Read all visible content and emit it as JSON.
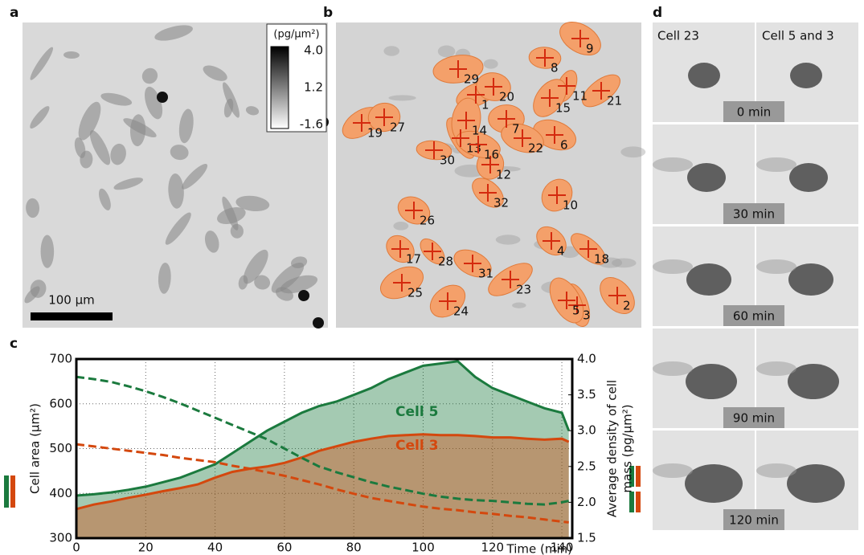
{
  "panels": {
    "a": {
      "label": "a",
      "scale_bar": "100 µm",
      "colorbar": {
        "title": "(pg/µm²)",
        "lim": [
          -1.6,
          4.0
        ],
        "ticks": [
          {
            "value": 4,
            "label": "4.0"
          },
          1.2,
          -1.6
        ]
      }
    },
    "b": {
      "label": "b",
      "cells": [
        "1",
        "2",
        "3",
        "4",
        "5",
        "6",
        "7",
        "8",
        "9",
        "10",
        "11",
        "12",
        "13",
        "14",
        "15",
        "16",
        "17",
        "18",
        "19",
        "20",
        "21",
        "22",
        "23",
        "24",
        "25",
        "26",
        "27",
        "28",
        "29",
        "30",
        "31",
        "32"
      ]
    },
    "c": {
      "label": "c"
    },
    "d": {
      "label": "d",
      "columns": [
        "Cell 23",
        "Cell 5 and 3"
      ],
      "times": [
        "0 min",
        "30 min",
        "60 min",
        "90 min",
        "120 min"
      ]
    }
  },
  "chart_data": {
    "type": "line",
    "x_label": "Time (min)",
    "y_label": "Cell area (µm²)",
    "y2_label": [
      "Average density of cell",
      "mass (pg/µm²)"
    ],
    "x": [
      0,
      5,
      10,
      15,
      20,
      25,
      30,
      35,
      40,
      45,
      50,
      55,
      60,
      65,
      70,
      75,
      80,
      85,
      90,
      95,
      100,
      105,
      110,
      115,
      120,
      125,
      130,
      135,
      140,
      142
    ],
    "xlim": [
      0,
      143
    ],
    "xticks": [
      0,
      20,
      40,
      60,
      80,
      100,
      120,
      140
    ],
    "ylim": [
      300,
      700
    ],
    "yticks": [
      300,
      400,
      500,
      600,
      700
    ],
    "y2lim": [
      1.5,
      4.0
    ],
    "y2ticks": [
      1.5,
      {
        "value": 2,
        "label": "2.0"
      },
      2.5,
      {
        "value": 3,
        "label": "3.0"
      },
      3.5,
      {
        "value": 4,
        "label": "4.0"
      }
    ],
    "grid": true,
    "series": [
      {
        "name": "Cell 5",
        "color": "#1b7a3e",
        "fill": true,
        "dashed": false,
        "values": [
          395,
          398,
          402,
          408,
          415,
          425,
          435,
          450,
          465,
          490,
          515,
          540,
          560,
          580,
          595,
          605,
          620,
          635,
          655,
          670,
          685,
          690,
          695,
          660,
          635,
          620,
          605,
          590,
          580,
          540
        ]
      },
      {
        "name": "Cell 3",
        "color": "#d4480e",
        "fill": true,
        "dashed": false,
        "values": [
          365,
          375,
          382,
          390,
          397,
          405,
          412,
          420,
          435,
          448,
          455,
          460,
          468,
          480,
          495,
          505,
          515,
          522,
          528,
          530,
          532,
          530,
          530,
          528,
          525,
          525,
          522,
          520,
          522,
          515
        ]
      },
      {
        "color": "#1b7a3e",
        "fill": false,
        "dashed": true,
        "axis": "y2",
        "values": [
          3.75,
          3.72,
          3.68,
          3.62,
          3.55,
          3.47,
          3.38,
          3.28,
          3.18,
          3.08,
          2.98,
          2.88,
          2.75,
          2.62,
          2.5,
          2.42,
          2.35,
          2.28,
          2.22,
          2.17,
          2.12,
          2.08,
          2.05,
          2.03,
          2.02,
          2.0,
          1.98,
          1.97,
          2.0,
          2.02
        ]
      },
      {
        "color": "#d4480e",
        "fill": false,
        "dashed": true,
        "axis": "y2",
        "values": [
          2.81,
          2.78,
          2.75,
          2.72,
          2.69,
          2.66,
          2.62,
          2.59,
          2.56,
          2.51,
          2.47,
          2.42,
          2.37,
          2.31,
          2.25,
          2.18,
          2.12,
          2.06,
          2.02,
          1.98,
          1.94,
          1.91,
          1.89,
          1.86,
          1.84,
          1.81,
          1.79,
          1.76,
          1.73,
          1.72
        ]
      }
    ]
  }
}
